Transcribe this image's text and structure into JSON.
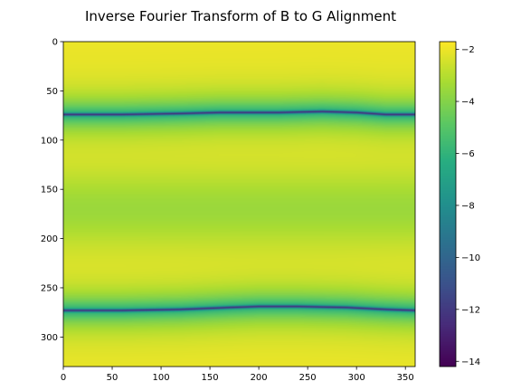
{
  "chart_data": {
    "type": "heatmap",
    "title": "Inverse Fourier Transform of B to G Alignment",
    "xlabel": "",
    "ylabel": "",
    "colormap": "viridis",
    "xlim": [
      0,
      360
    ],
    "ylim": [
      330,
      0
    ],
    "y_axis_inverted": true,
    "x_ticks": [
      "0",
      "50",
      "100",
      "150",
      "200",
      "250",
      "300",
      "350"
    ],
    "y_ticks": [
      "0",
      "50",
      "100",
      "150",
      "200",
      "250",
      "300"
    ],
    "colorbar": {
      "vmin": -14.2,
      "vmax": -1.7,
      "ticks": [
        "−2",
        "−4",
        "−6",
        "−8",
        "−10",
        "−12",
        "−14"
      ]
    },
    "field": {
      "background_level": -2.0,
      "band_level": -12.5,
      "bands": [
        {
          "name": "upper",
          "y_center_at_x": [
            [
              0,
              74
            ],
            [
              60,
              74
            ],
            [
              120,
              73
            ],
            [
              160,
              72
            ],
            [
              220,
              72
            ],
            [
              265,
              71
            ],
            [
              300,
              72
            ],
            [
              330,
              74
            ],
            [
              360,
              74
            ]
          ]
        },
        {
          "name": "lower",
          "y_center_at_x": [
            [
              0,
              273
            ],
            [
              60,
              273
            ],
            [
              120,
              272
            ],
            [
              170,
              270
            ],
            [
              200,
              269
            ],
            [
              240,
              269
            ],
            [
              290,
              270
            ],
            [
              330,
              272
            ],
            [
              360,
              273
            ]
          ]
        }
      ]
    }
  }
}
